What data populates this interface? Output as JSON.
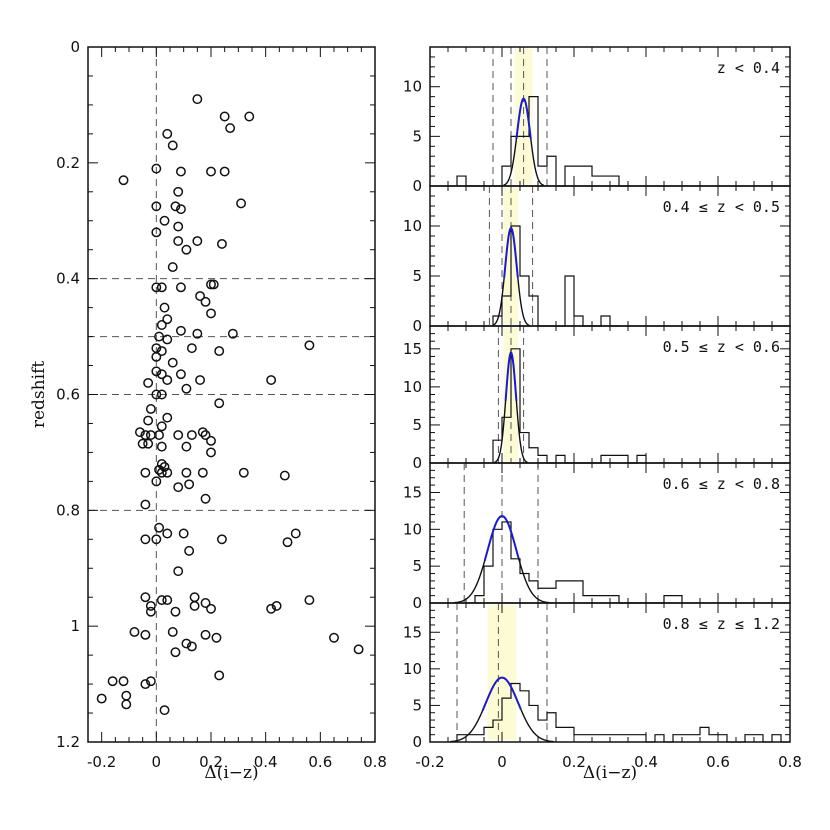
{
  "colors": {
    "frame": "#111111",
    "point": "#111111",
    "fit_blue": "#1a1ad6",
    "fit_black": "#111111",
    "band_yellow": "#f5ec3a",
    "dashed": "#555555"
  },
  "chart_data": [
    {
      "type": "scatter",
      "xlabel": "Δ(i−z)",
      "ylabel": "redshift",
      "xlim": [
        -0.25,
        0.8
      ],
      "ylim": [
        1.2,
        0
      ],
      "xticks": [
        -0.2,
        0,
        0.2,
        0.4,
        0.6,
        0.8
      ],
      "xtick_labels": [
        "-0.2",
        "0",
        "0.2",
        "0.4",
        "0.6",
        "0.8"
      ],
      "yticks": [
        0,
        0.2,
        0.4,
        0.6,
        0.8,
        1,
        1.2
      ],
      "ytick_labels": [
        "0",
        "0.2",
        "0.4",
        "0.6",
        "0.8",
        "1",
        "1.2"
      ],
      "reference_lines_y": [
        0.4,
        0.5,
        0.6,
        0.8
      ],
      "points": [
        [
          0.15,
          0.09
        ],
        [
          0.25,
          0.12
        ],
        [
          0.34,
          0.12
        ],
        [
          0.27,
          0.14
        ],
        [
          0.04,
          0.15
        ],
        [
          0.06,
          0.17
        ],
        [
          -0.12,
          0.23
        ],
        [
          0.0,
          0.21
        ],
        [
          0.09,
          0.215
        ],
        [
          0.2,
          0.215
        ],
        [
          0.25,
          0.215
        ],
        [
          0.08,
          0.25
        ],
        [
          0.31,
          0.27
        ],
        [
          0.0,
          0.275
        ],
        [
          0.07,
          0.275
        ],
        [
          0.09,
          0.28
        ],
        [
          0.03,
          0.3
        ],
        [
          0.0,
          0.32
        ],
        [
          0.08,
          0.31
        ],
        [
          0.08,
          0.335
        ],
        [
          0.15,
          0.335
        ],
        [
          0.24,
          0.34
        ],
        [
          0.11,
          0.35
        ],
        [
          0.06,
          0.38
        ],
        [
          0.0,
          0.415
        ],
        [
          0.02,
          0.415
        ],
        [
          0.09,
          0.415
        ],
        [
          0.2,
          0.41
        ],
        [
          0.21,
          0.41
        ],
        [
          0.16,
          0.43
        ],
        [
          0.03,
          0.45
        ],
        [
          0.18,
          0.44
        ],
        [
          0.04,
          0.47
        ],
        [
          0.2,
          0.46
        ],
        [
          0.02,
          0.48
        ],
        [
          0.09,
          0.49
        ],
        [
          0.15,
          0.495
        ],
        [
          0.28,
          0.495
        ],
        [
          0.01,
          0.5
        ],
        [
          0.04,
          0.505
        ],
        [
          0.0,
          0.52
        ],
        [
          0.02,
          0.525
        ],
        [
          0.13,
          0.52
        ],
        [
          0.23,
          0.525
        ],
        [
          0.56,
          0.515
        ],
        [
          0.0,
          0.535
        ],
        [
          0.06,
          0.545
        ],
        [
          0.0,
          0.56
        ],
        [
          0.02,
          0.565
        ],
        [
          0.09,
          0.565
        ],
        [
          0.04,
          0.575
        ],
        [
          0.16,
          0.575
        ],
        [
          -0.03,
          0.58
        ],
        [
          0.11,
          0.59
        ],
        [
          0.42,
          0.575
        ],
        [
          0.0,
          0.6
        ],
        [
          0.02,
          0.6
        ],
        [
          0.23,
          0.615
        ],
        [
          -0.02,
          0.625
        ],
        [
          0.04,
          0.64
        ],
        [
          -0.03,
          0.645
        ],
        [
          0.02,
          0.655
        ],
        [
          -0.06,
          0.665
        ],
        [
          -0.04,
          0.67
        ],
        [
          -0.02,
          0.67
        ],
        [
          0.01,
          0.67
        ],
        [
          0.08,
          0.67
        ],
        [
          0.13,
          0.67
        ],
        [
          0.17,
          0.665
        ],
        [
          0.18,
          0.67
        ],
        [
          0.2,
          0.68
        ],
        [
          -0.05,
          0.685
        ],
        [
          -0.03,
          0.685
        ],
        [
          0.02,
          0.69
        ],
        [
          0.11,
          0.69
        ],
        [
          0.2,
          0.7
        ],
        [
          0.02,
          0.72
        ],
        [
          0.03,
          0.725
        ],
        [
          -0.04,
          0.735
        ],
        [
          0.01,
          0.73
        ],
        [
          0.02,
          0.735
        ],
        [
          0.04,
          0.735
        ],
        [
          0.11,
          0.735
        ],
        [
          0.17,
          0.735
        ],
        [
          0.32,
          0.735
        ],
        [
          0.47,
          0.74
        ],
        [
          0.0,
          0.75
        ],
        [
          0.08,
          0.76
        ],
        [
          0.12,
          0.755
        ],
        [
          0.18,
          0.78
        ],
        [
          -0.04,
          0.79
        ],
        [
          0.01,
          0.83
        ],
        [
          0.04,
          0.84
        ],
        [
          -0.04,
          0.85
        ],
        [
          0.0,
          0.85
        ],
        [
          0.1,
          0.84
        ],
        [
          0.24,
          0.85
        ],
        [
          0.48,
          0.855
        ],
        [
          0.51,
          0.84
        ],
        [
          0.12,
          0.87
        ],
        [
          0.08,
          0.905
        ],
        [
          -0.04,
          0.95
        ],
        [
          -0.02,
          0.965
        ],
        [
          0.02,
          0.955
        ],
        [
          0.04,
          0.955
        ],
        [
          0.14,
          0.95
        ],
        [
          0.14,
          0.965
        ],
        [
          0.18,
          0.96
        ],
        [
          0.2,
          0.97
        ],
        [
          0.42,
          0.97
        ],
        [
          0.44,
          0.965
        ],
        [
          0.56,
          0.955
        ],
        [
          -0.02,
          0.975
        ],
        [
          0.07,
          0.975
        ],
        [
          -0.08,
          1.01
        ],
        [
          -0.04,
          1.015
        ],
        [
          0.06,
          1.01
        ],
        [
          0.18,
          1.015
        ],
        [
          0.22,
          1.02
        ],
        [
          0.11,
          1.03
        ],
        [
          0.13,
          1.035
        ],
        [
          0.07,
          1.045
        ],
        [
          0.65,
          1.02
        ],
        [
          0.74,
          1.04
        ],
        [
          0.23,
          1.085
        ],
        [
          -0.16,
          1.095
        ],
        [
          -0.12,
          1.095
        ],
        [
          -0.02,
          1.095
        ],
        [
          -0.04,
          1.1
        ],
        [
          -0.11,
          1.12
        ],
        [
          -0.2,
          1.125
        ],
        [
          -0.11,
          1.135
        ],
        [
          0.03,
          1.145
        ]
      ]
    },
    {
      "type": "histogram",
      "xlabel": "Δ(i−z)",
      "xlim": [
        -0.2,
        0.8
      ],
      "xticks": [
        -0.2,
        0,
        0.2,
        0.4,
        0.6,
        0.8
      ],
      "xtick_labels": [
        "-0.2",
        "0",
        "0.2",
        "0.4",
        "0.6",
        "0.8"
      ],
      "bin_width": 0.025,
      "panels": [
        {
          "label": "z < 0.4",
          "ylim": [
            0,
            14
          ],
          "yticks": [
            0,
            5,
            10
          ],
          "ytick_labels": [
            "0",
            "5",
            "10"
          ],
          "bin_start": -0.125,
          "counts": [
            1,
            0,
            0,
            0,
            0,
            2,
            5,
            5,
            9,
            2,
            3,
            0,
            2,
            2,
            2,
            1,
            1,
            1,
            0
          ],
          "fit_mu": 0.06,
          "fit_sigma": 0.018,
          "fit_amp": 8.8,
          "dashed_x": [
            -0.025,
            0.025,
            0.06,
            0.125
          ],
          "band": [
            0.035,
            0.085
          ]
        },
        {
          "label": "0.4 ≤ z < 0.5",
          "ylim": [
            0,
            14
          ],
          "yticks": [
            0,
            5,
            10
          ],
          "ytick_labels": [
            "0",
            "5",
            "10"
          ],
          "bin_start": -0.025,
          "counts": [
            1,
            3,
            10,
            5,
            3,
            0,
            0,
            0,
            5,
            1,
            0,
            0,
            1,
            0
          ],
          "fit_mu": 0.025,
          "fit_sigma": 0.016,
          "fit_amp": 9.8,
          "dashed_x": [
            -0.035,
            0.0,
            0.025,
            0.085
          ],
          "band": [
            0.005,
            0.045
          ]
        },
        {
          "label": "0.5 ≤ z < 0.6",
          "ylim": [
            0,
            18
          ],
          "yticks": [
            0,
            5,
            10,
            15
          ],
          "ytick_labels": [
            "0",
            "5",
            "10",
            "15"
          ],
          "bin_start": -0.025,
          "counts": [
            3,
            6,
            15,
            4,
            2,
            1,
            0,
            1,
            0,
            0,
            0,
            0,
            1,
            1,
            1,
            0,
            1
          ],
          "fit_mu": 0.025,
          "fit_sigma": 0.014,
          "fit_amp": 14.5,
          "dashed_x": [
            -0.01,
            0.025,
            0.06
          ],
          "band": [
            0.005,
            0.045
          ]
        },
        {
          "label": "0.6 ≤ z < 0.8",
          "ylim": [
            0,
            19
          ],
          "yticks": [
            0,
            5,
            10,
            15
          ],
          "ytick_labels": [
            "0",
            "5",
            "10",
            "15"
          ],
          "bin_start": -0.075,
          "counts": [
            1,
            5,
            10,
            11,
            6,
            4,
            3,
            2,
            2,
            3,
            3,
            3,
            1,
            1,
            1,
            1,
            0,
            0,
            0,
            0,
            0,
            1,
            1
          ],
          "fit_mu": 0.0,
          "fit_sigma": 0.04,
          "fit_amp": 11.8,
          "dashed_x": [
            -0.105,
            0.0,
            0.1
          ],
          "band": null
        },
        {
          "label": "0.8 ≤ z ≤ 1.2",
          "ylim": [
            0,
            19
          ],
          "yticks": [
            0,
            5,
            10,
            15
          ],
          "ytick_labels": [
            "0",
            "5",
            "10",
            "15"
          ],
          "bin_start": -0.125,
          "counts": [
            1,
            1,
            1,
            2,
            3,
            6,
            8,
            7,
            5,
            3,
            4,
            2,
            2,
            1,
            1,
            1,
            1,
            1,
            1,
            1,
            1,
            0,
            1,
            0,
            1,
            1,
            1,
            2,
            1,
            1,
            0,
            0,
            1,
            1,
            0,
            1,
            0
          ],
          "fit_mu": 0.0,
          "fit_sigma": 0.045,
          "fit_amp": 8.8,
          "dashed_x": [
            -0.125,
            -0.01,
            0.125
          ],
          "band": [
            -0.04,
            0.04
          ]
        }
      ]
    }
  ]
}
